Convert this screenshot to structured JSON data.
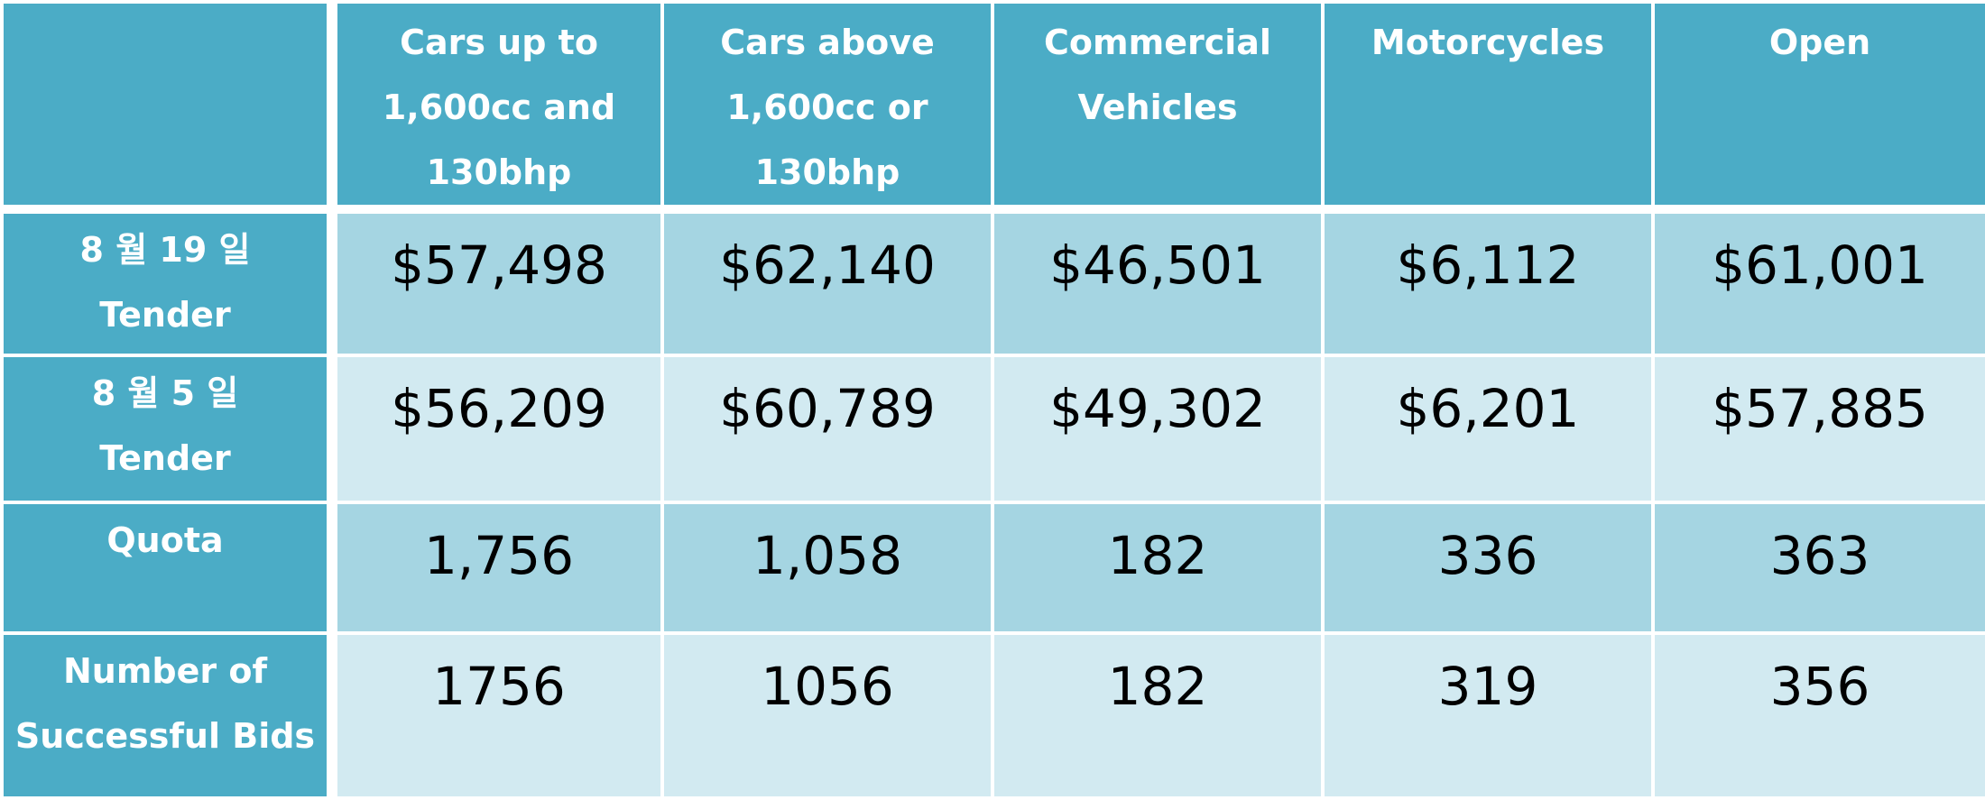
{
  "table": {
    "columns": [
      "Cars up to 1,600cc and 130bhp",
      "Cars above 1,600cc or 130bhp",
      "Commercial Vehicles",
      "Motorcycles",
      "Open"
    ],
    "rows": [
      {
        "label_line1": "8 월 19 일",
        "label_line2": "Tender",
        "cells": [
          "$57,498",
          "$62,140",
          "$46,501",
          "$6,112",
          "$61,001"
        ]
      },
      {
        "label_line1": "8 월 5 일",
        "label_line2": "Tender",
        "cells": [
          "$56,209",
          "$60,789",
          "$49,302",
          "$6,201",
          "$57,885"
        ]
      },
      {
        "label_line1": "Quota",
        "label_line2": "",
        "cells": [
          "1,756",
          "1,058",
          "182",
          "336",
          "363"
        ]
      },
      {
        "label_line1": "Number of",
        "label_line2": "Successful Bids",
        "cells": [
          "1756",
          "1056",
          "182",
          "319",
          "356"
        ]
      }
    ]
  },
  "colors": {
    "header": "#4bacc6",
    "band_dark": "#a5d5e2",
    "band_light": "#d2eaf1",
    "header_text": "#ffffff",
    "cell_text": "#000000"
  }
}
